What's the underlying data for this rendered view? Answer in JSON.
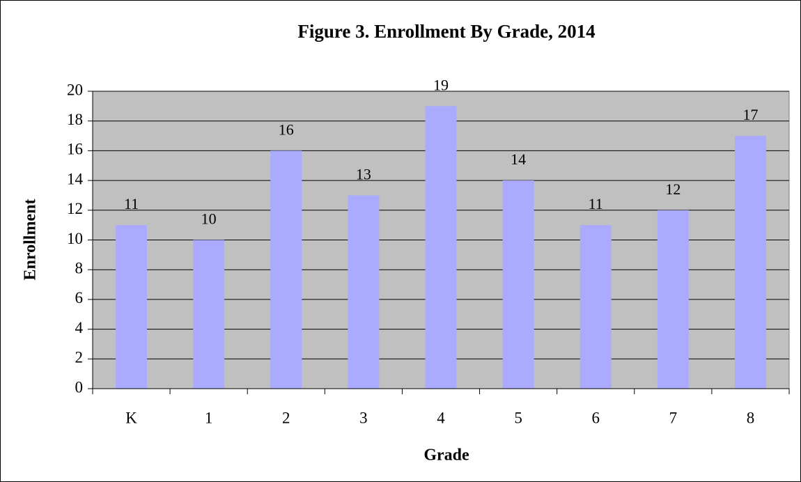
{
  "chart_data": {
    "type": "bar",
    "title": "Figure 3. Enrollment By Grade, 2014",
    "x_label": "Grade",
    "y_label": "Enrollment",
    "categories": [
      "K",
      "1",
      "2",
      "3",
      "4",
      "5",
      "6",
      "7",
      "8"
    ],
    "values": [
      11,
      10,
      16,
      13,
      19,
      14,
      11,
      12,
      17
    ],
    "color": "#aaaaff",
    "ylim": [
      0,
      20
    ],
    "yticks": [
      0,
      2,
      4,
      6,
      8,
      10,
      12,
      14,
      16,
      18,
      20
    ],
    "grid": true
  }
}
